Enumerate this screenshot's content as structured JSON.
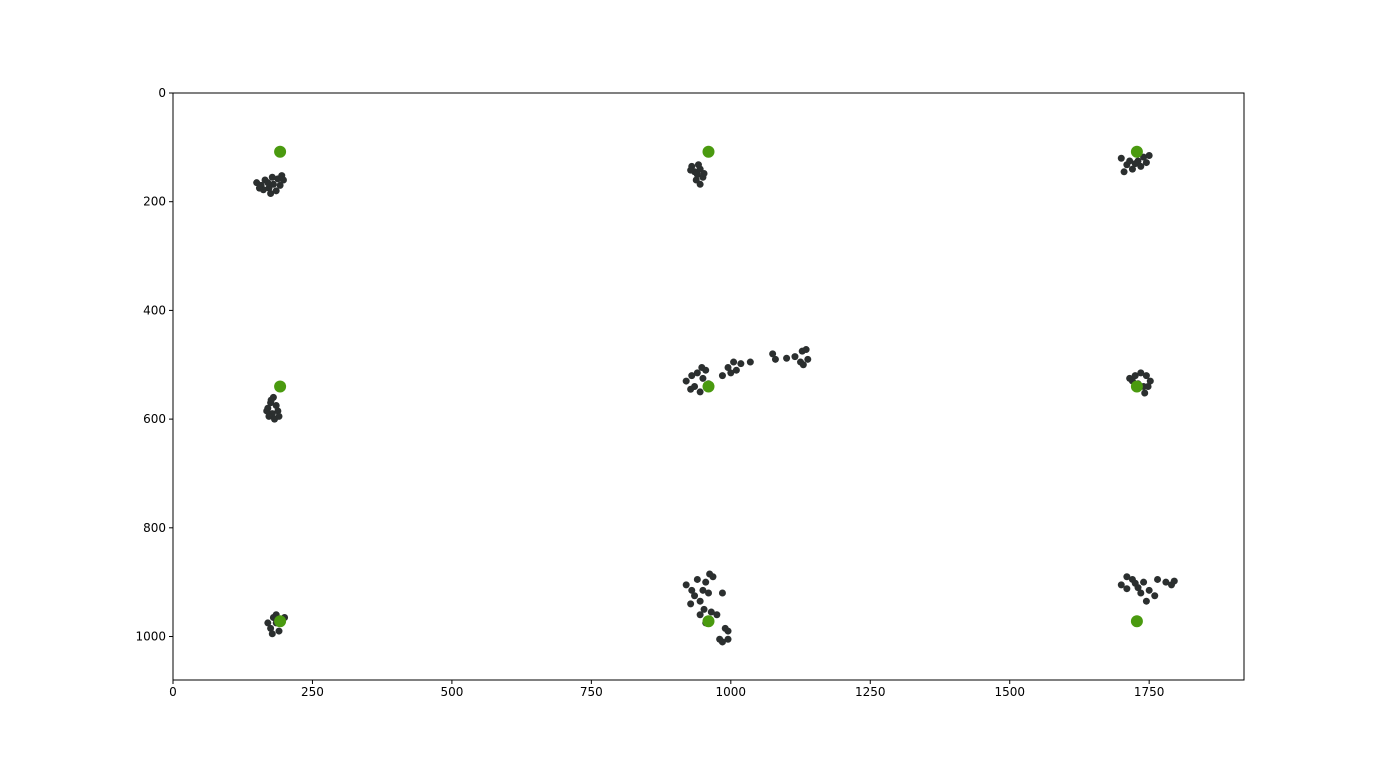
{
  "chart_data": {
    "type": "scatter",
    "title": "",
    "xlabel": "",
    "ylabel": "",
    "xlim": [
      0,
      1920
    ],
    "ylim": [
      1080,
      0
    ],
    "y_inverted": true,
    "grid": false,
    "x_ticks": [
      0,
      250,
      500,
      750,
      1000,
      1250,
      1500,
      1750
    ],
    "y_ticks": [
      0,
      200,
      400,
      600,
      800,
      1000
    ],
    "x_tick_labels": [
      "0",
      "250",
      "500",
      "750",
      "1000",
      "1250",
      "1500",
      "1750"
    ],
    "y_tick_labels": [
      "0",
      "200",
      "400",
      "600",
      "800",
      "1000"
    ],
    "series": [
      {
        "color": "#2b2f2f",
        "points": [
          [
            150,
            165
          ],
          [
            158,
            170
          ],
          [
            165,
            160
          ],
          [
            172,
            175
          ],
          [
            180,
            168
          ],
          [
            188,
            158
          ],
          [
            195,
            152
          ],
          [
            175,
            185
          ],
          [
            162,
            178
          ],
          [
            185,
            180
          ],
          [
            170,
            165
          ],
          [
            192,
            170
          ],
          [
            155,
            175
          ],
          [
            178,
            155
          ],
          [
            198,
            160
          ],
          [
            930,
            135
          ],
          [
            935,
            145
          ],
          [
            940,
            150
          ],
          [
            945,
            140
          ],
          [
            950,
            155
          ],
          [
            938,
            160
          ],
          [
            945,
            168
          ],
          [
            952,
            148
          ],
          [
            928,
            142
          ],
          [
            942,
            132
          ],
          [
            1700,
            120
          ],
          [
            1710,
            132
          ],
          [
            1720,
            140
          ],
          [
            1730,
            125
          ],
          [
            1740,
            118
          ],
          [
            1750,
            115
          ],
          [
            1715,
            125
          ],
          [
            1725,
            130
          ],
          [
            1735,
            135
          ],
          [
            1745,
            128
          ],
          [
            1705,
            145
          ],
          [
            1728,
            112
          ],
          [
            170,
            580
          ],
          [
            175,
            570
          ],
          [
            180,
            560
          ],
          [
            185,
            575
          ],
          [
            178,
            590
          ],
          [
            172,
            595
          ],
          [
            182,
            600
          ],
          [
            188,
            585
          ],
          [
            176,
            565
          ],
          [
            190,
            595
          ],
          [
            168,
            585
          ],
          [
            920,
            530
          ],
          [
            930,
            520
          ],
          [
            935,
            540
          ],
          [
            945,
            550
          ],
          [
            950,
            525
          ],
          [
            955,
            510
          ],
          [
            940,
            515
          ],
          [
            928,
            545
          ],
          [
            960,
            535
          ],
          [
            948,
            505
          ],
          [
            985,
            520
          ],
          [
            995,
            505
          ],
          [
            1005,
            495
          ],
          [
            1010,
            510
          ],
          [
            1018,
            498
          ],
          [
            1000,
            515
          ],
          [
            1035,
            495
          ],
          [
            1075,
            480
          ],
          [
            1080,
            490
          ],
          [
            1100,
            488
          ],
          [
            1115,
            485
          ],
          [
            1125,
            495
          ],
          [
            1128,
            475
          ],
          [
            1135,
            472
          ],
          [
            1138,
            490
          ],
          [
            1130,
            500
          ],
          [
            1715,
            525
          ],
          [
            1725,
            520
          ],
          [
            1735,
            515
          ],
          [
            1745,
            520
          ],
          [
            1752,
            530
          ],
          [
            1740,
            540
          ],
          [
            1730,
            535
          ],
          [
            1720,
            530
          ],
          [
            1742,
            552
          ],
          [
            1748,
            540
          ],
          [
            180,
            965
          ],
          [
            185,
            975
          ],
          [
            175,
            985
          ],
          [
            190,
            990
          ],
          [
            195,
            970
          ],
          [
            170,
            975
          ],
          [
            185,
            960
          ],
          [
            200,
            965
          ],
          [
            178,
            995
          ],
          [
            920,
            905
          ],
          [
            930,
            915
          ],
          [
            935,
            925
          ],
          [
            945,
            935
          ],
          [
            950,
            915
          ],
          [
            955,
            900
          ],
          [
            940,
            895
          ],
          [
            928,
            940
          ],
          [
            960,
            920
          ],
          [
            962,
            885
          ],
          [
            968,
            890
          ],
          [
            945,
            960
          ],
          [
            952,
            950
          ],
          [
            955,
            975
          ],
          [
            965,
            955
          ],
          [
            975,
            960
          ],
          [
            985,
            920
          ],
          [
            990,
            985
          ],
          [
            995,
            990
          ],
          [
            980,
            1005
          ],
          [
            985,
            1010
          ],
          [
            995,
            1005
          ],
          [
            1700,
            905
          ],
          [
            1710,
            890
          ],
          [
            1720,
            895
          ],
          [
            1730,
            910
          ],
          [
            1740,
            900
          ],
          [
            1750,
            915
          ],
          [
            1760,
            925
          ],
          [
            1745,
            935
          ],
          [
            1735,
            920
          ],
          [
            1765,
            895
          ],
          [
            1780,
            900
          ],
          [
            1790,
            905
          ],
          [
            1795,
            898
          ],
          [
            1710,
            912
          ],
          [
            1725,
            902
          ]
        ]
      },
      {
        "color": "#4a9a0f",
        "points": [
          [
            192,
            108
          ],
          [
            960,
            108
          ],
          [
            1728,
            108
          ],
          [
            192,
            540
          ],
          [
            960,
            540
          ],
          [
            1728,
            540
          ],
          [
            192,
            972
          ],
          [
            960,
            972
          ],
          [
            1728,
            972
          ]
        ]
      }
    ]
  }
}
